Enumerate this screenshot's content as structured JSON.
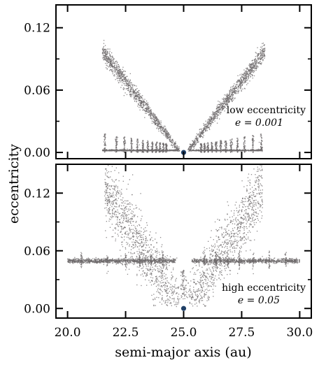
{
  "chart_data": {
    "type": "scatter",
    "xlabel": "semi-major axis (au)",
    "ylabel": "eccentricity",
    "xlim": [
      19.5,
      30.5
    ],
    "x_ticks": [
      "20.0",
      "22.5",
      "25.0",
      "27.5",
      "30.0"
    ],
    "x_tick_values": [
      20.0,
      22.5,
      25.0,
      27.5,
      30.0
    ],
    "colors": {
      "points": "#6e6a6c",
      "planet": "#1f3f66"
    },
    "panels": [
      {
        "label_line1": "low eccentricity",
        "label_line2": "e = 0.001",
        "ylim": [
          -0.006,
          0.142
        ],
        "y_ticks": [
          "0.00",
          "0.06",
          "0.12"
        ],
        "y_tick_values": [
          0.0,
          0.06,
          0.12
        ],
        "planet": {
          "x": 25.0,
          "y": 0.0
        },
        "series": [
          {
            "type": "v-branch",
            "x_min": 21.6,
            "x_max": 28.4,
            "center": 25.0,
            "slope_left": 0.029,
            "slope_right": 0.029,
            "y_max": 0.102
          },
          {
            "type": "near-zero-band",
            "x_min": 21.5,
            "x_max": 28.4,
            "y": 0.002
          }
        ]
      },
      {
        "label_line1": "high eccentricity",
        "label_line2": "e = 0.05",
        "ylim": [
          -0.01,
          0.15
        ],
        "y_ticks": [
          "0.00",
          "0.06",
          "0.12"
        ],
        "y_tick_values": [
          0.0,
          0.06,
          0.12
        ],
        "planet": {
          "x": 25.0,
          "y": 0.0
        },
        "series": [
          {
            "type": "horizontal-band",
            "x_min": 20.0,
            "x_max": 30.0,
            "y": 0.05
          },
          {
            "type": "v-branch",
            "x_min": 21.8,
            "x_max": 28.5,
            "center": 25.0,
            "y_max": 0.135
          }
        ]
      }
    ]
  }
}
